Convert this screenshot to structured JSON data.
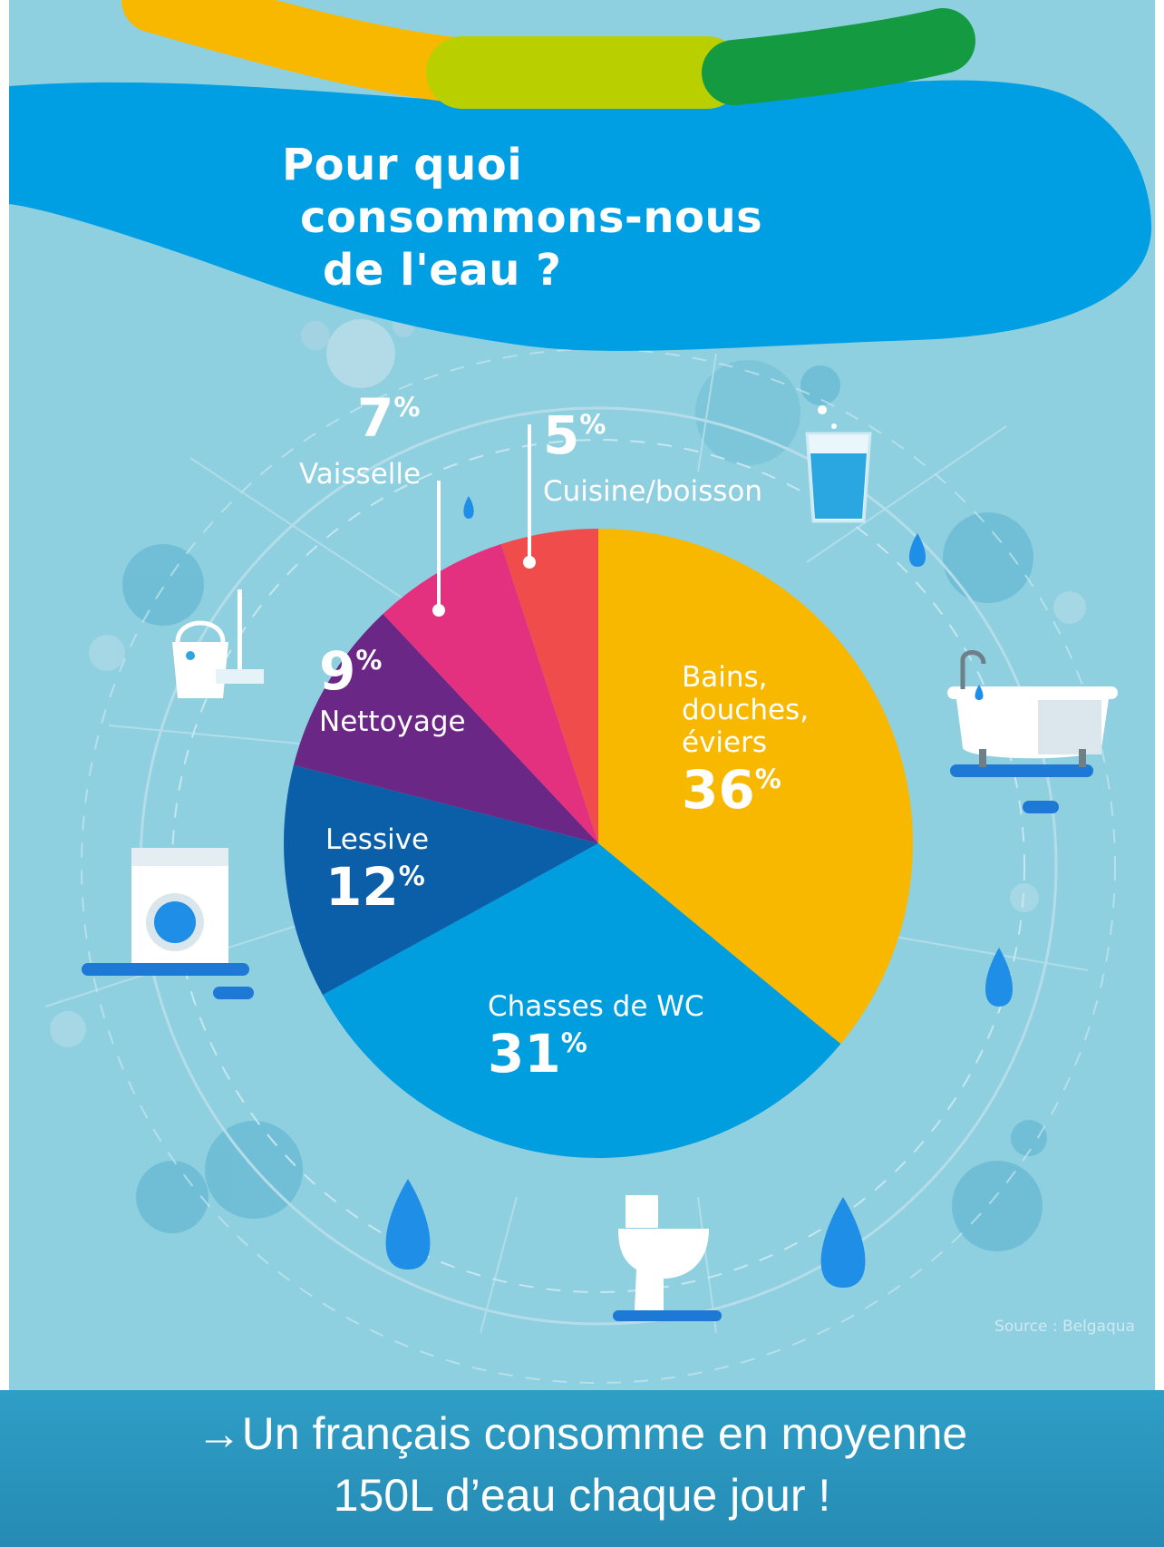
{
  "title_lines": [
    "Pour quoi",
    "consommons-nous",
    "de l'eau ?"
  ],
  "source": "Source : Belgaqua",
  "caption": {
    "line1": "→Un français consomme en moyenne",
    "line2": "150L d’eau chaque jour !"
  },
  "chart_data": {
    "type": "pie",
    "slices": [
      {
        "label": "Bains, douches, éviers",
        "label_lines": [
          "Bains,",
          "douches,",
          "éviers"
        ],
        "value": 36,
        "value_text": "36",
        "color": "#f9b800"
      },
      {
        "label": "Chasses de WC",
        "label_lines": [
          "Chasses de WC"
        ],
        "value": 31,
        "value_text": "31",
        "color": "#009ddf"
      },
      {
        "label": "Lessive",
        "label_lines": [
          "Lessive"
        ],
        "value": 12,
        "value_text": "12",
        "color": "#0b5ea8"
      },
      {
        "label": "Nettoyage",
        "label_lines": [
          "Nettoyage"
        ],
        "value": 9,
        "value_text": "9",
        "color": "#6b2785"
      },
      {
        "label": "Vaisselle",
        "label_lines": [
          "Vaisselle"
        ],
        "value": 7,
        "value_text": "7",
        "color": "#e3317f"
      },
      {
        "label": "Cuisine/boisson",
        "label_lines": [
          "Cuisine/boisson"
        ],
        "value": 5,
        "value_text": "5",
        "color": "#f04c4c"
      }
    ],
    "percent_symbol": "%"
  },
  "icons": [
    "glass-of-water-icon",
    "bathtub-icon",
    "toilet-icon",
    "washing-machine-icon",
    "bucket-mop-icon",
    "water-drop-icon"
  ],
  "colors": {
    "background": "#8ecfe0",
    "title_banner": "#009ee2",
    "stripe_yellow": "#f9b800",
    "stripe_lime": "#b9cf00",
    "stripe_green": "#149a40",
    "caption_bar": "#2f9ec6"
  }
}
